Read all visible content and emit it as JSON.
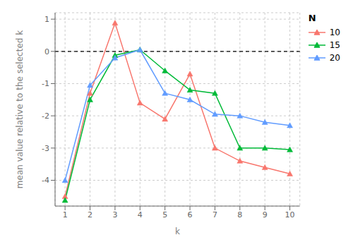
{
  "chart_data": {
    "type": "line",
    "xlabel": "k",
    "ylabel": "mean value relative to the selected k",
    "x": [
      1,
      2,
      3,
      4,
      5,
      6,
      7,
      8,
      9,
      10
    ],
    "series": [
      {
        "name": "10",
        "color": "#F8766D",
        "marker": "triangle",
        "values": [
          -4.5,
          -1.3,
          0.88,
          -1.6,
          -2.1,
          -0.7,
          -3.0,
          -3.4,
          -3.6,
          -3.8
        ]
      },
      {
        "name": "15",
        "color": "#00BA38",
        "marker": "triangle",
        "values": [
          -4.62,
          -1.5,
          -0.12,
          0.05,
          -0.6,
          -1.2,
          -1.3,
          -3.0,
          -3.0,
          -3.05
        ]
      },
      {
        "name": "20",
        "color": "#619CFF",
        "marker": "triangle",
        "values": [
          -4.0,
          -1.05,
          -0.2,
          0.05,
          -1.3,
          -1.5,
          -1.95,
          -2.0,
          -2.2,
          -2.3
        ]
      }
    ],
    "xlim": [
      0.6,
      10.4
    ],
    "ylim": [
      -4.8,
      1.2
    ],
    "xticks": [
      1,
      2,
      3,
      4,
      5,
      6,
      7,
      8,
      9,
      10
    ],
    "yticks": [
      -4,
      -3,
      -2,
      -1,
      0,
      1
    ],
    "hline": 0,
    "legend_title": "N",
    "legend": "right",
    "grid": true
  }
}
